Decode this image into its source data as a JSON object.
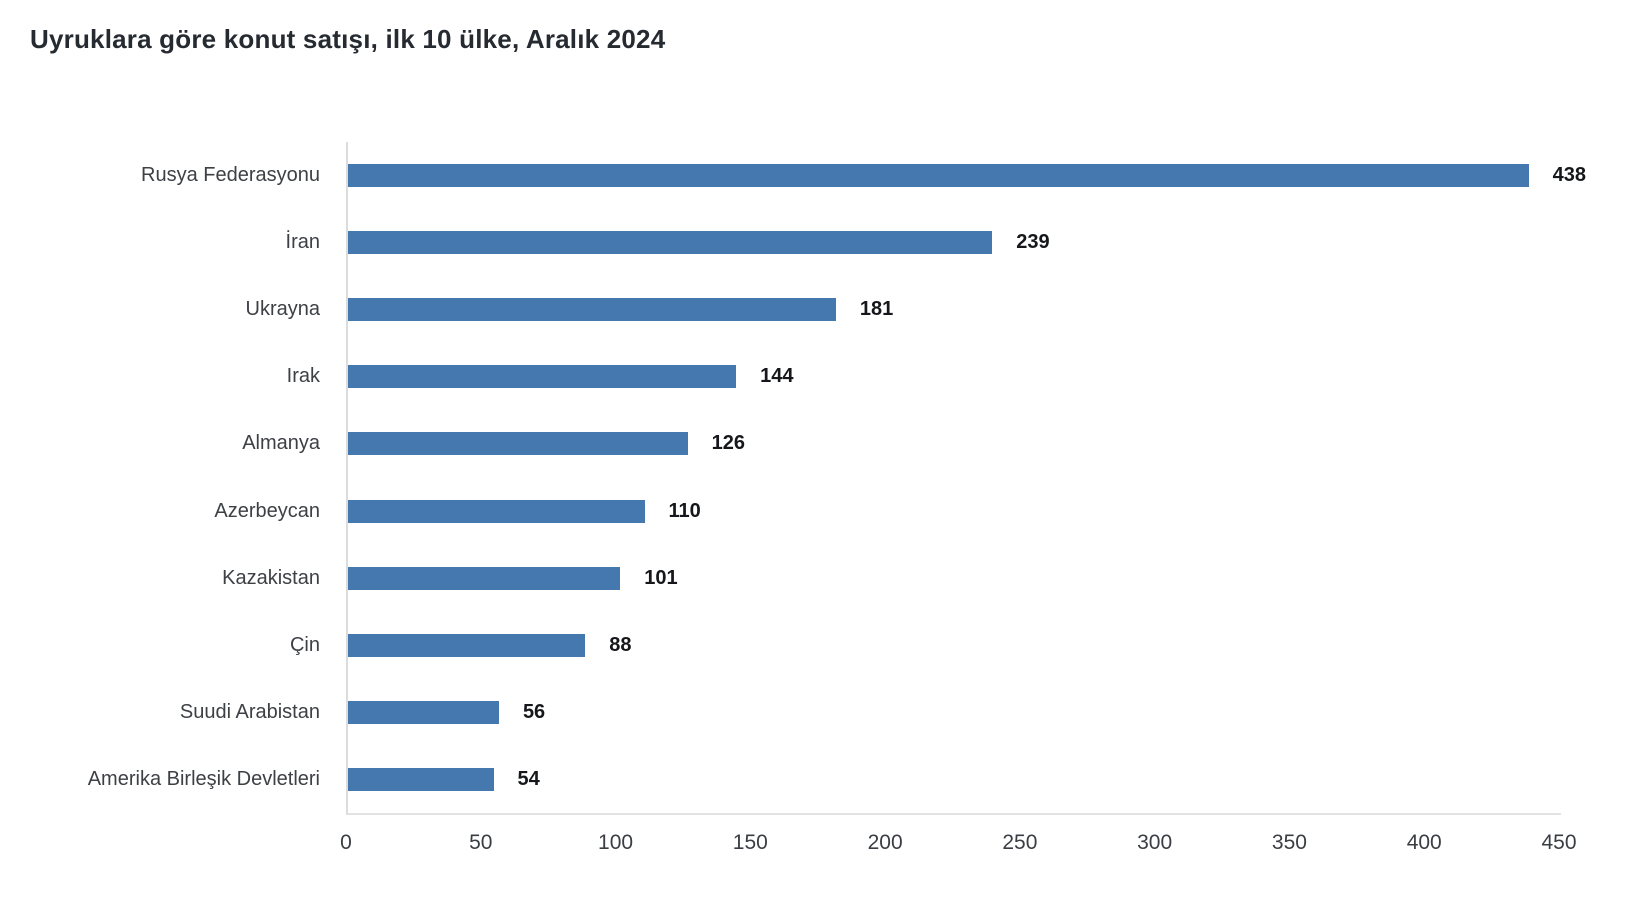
{
  "chart_data": {
    "type": "bar",
    "orientation": "horizontal",
    "title": "Uyruklara göre konut satışı, ilk 10 ülke, Aralık 2024",
    "categories": [
      "Rusya Federasyonu",
      "İran",
      "Ukrayna",
      "Irak",
      "Almanya",
      "Azerbeycan",
      "Kazakistan",
      "Çin",
      "Suudi Arabistan",
      "Amerika Birleşik Devletleri"
    ],
    "values": [
      438,
      239,
      181,
      144,
      126,
      110,
      101,
      88,
      56,
      54
    ],
    "xlabel": "",
    "ylabel": "",
    "xlim": [
      0,
      450
    ],
    "x_ticks": [
      0,
      50,
      100,
      150,
      200,
      250,
      300,
      350,
      400,
      450
    ],
    "grid": false,
    "legend": false,
    "value_labels_shown": true,
    "colors": {
      "bar": "#4678b0",
      "background": "#ffffff",
      "title_text": "#262a31",
      "category_text": "#3d4045",
      "value_text": "#15171a",
      "tick_text": "#3a3e44",
      "axis_line": "#dcdcdc"
    }
  }
}
